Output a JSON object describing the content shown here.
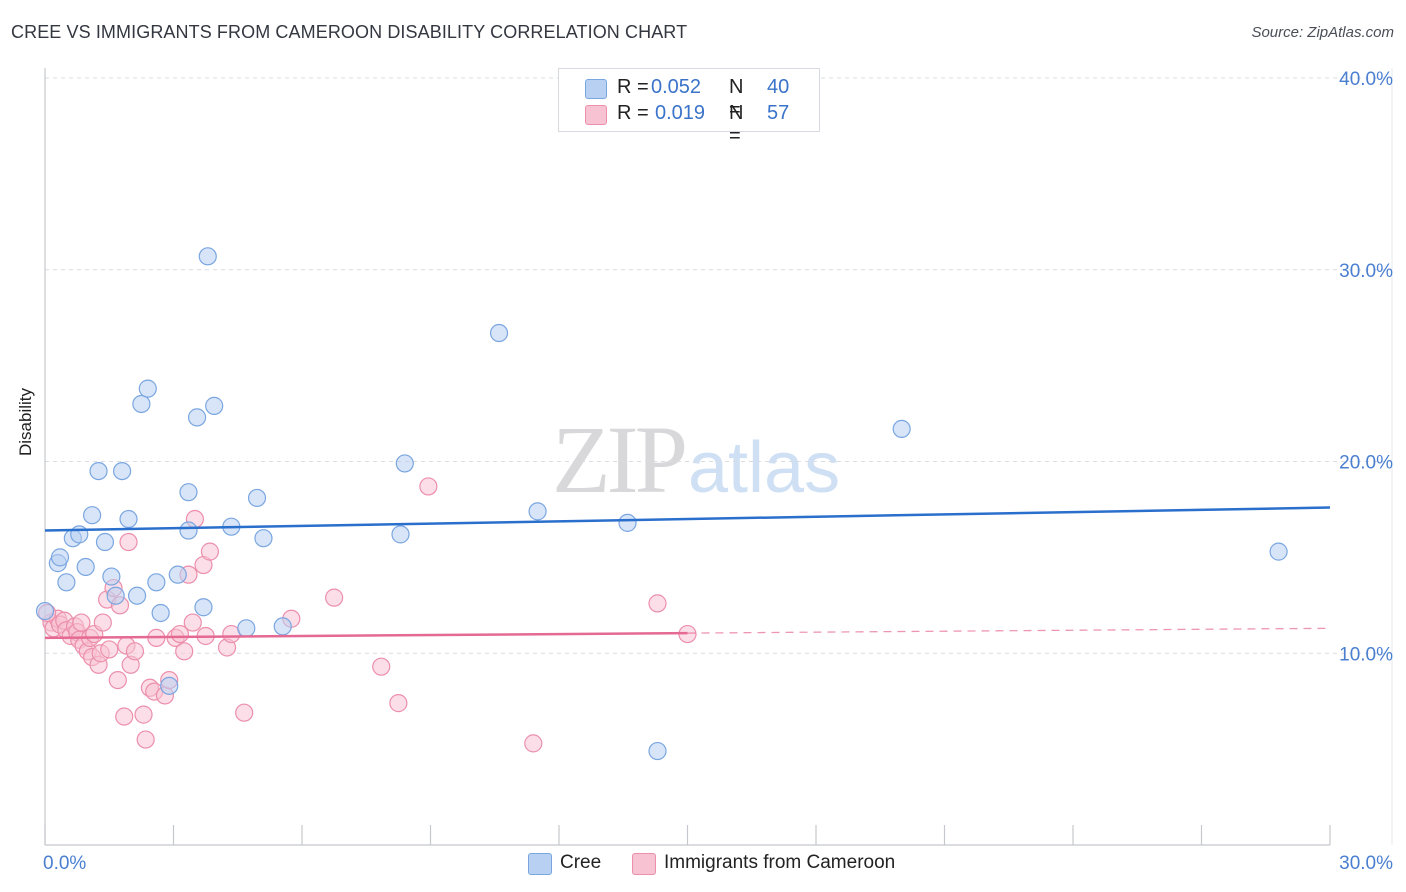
{
  "title": "CREE VS IMMIGRANTS FROM CAMEROON DISABILITY CORRELATION CHART",
  "source": "Source: ZipAtlas.com",
  "watermark": {
    "zip": "ZIP",
    "atlas": "atlas"
  },
  "colors": {
    "cree_fill": "#b8d0f2",
    "cree_stroke": "#7aa6e0",
    "cree_line": "#2a6fcc",
    "cam_fill": "#f7c3d3",
    "cam_stroke": "#ec8fac",
    "cam_line": "#e56a93",
    "tick_label": "#4a7fd0",
    "grid": "#d9dce1"
  },
  "legend_top": {
    "rows": [
      {
        "series": "cree",
        "r_label": "R =",
        "r_value": "0.052",
        "n_label": "N =",
        "n_value": "40"
      },
      {
        "series": "cameroon",
        "r_label": "R =",
        "r_value": "0.019",
        "n_label": "N =",
        "n_value": "57"
      }
    ]
  },
  "legend_bottom": {
    "items": [
      "Cree",
      "Immigrants from Cameroon"
    ]
  },
  "chart_data": {
    "type": "scatter",
    "title": "CREE VS IMMIGRANTS FROM CAMEROON DISABILITY CORRELATION CHART",
    "xlabel": "",
    "ylabel": "Disability",
    "xlim": [
      0,
      30
    ],
    "ylim": [
      0,
      40
    ],
    "x_tick_labels": [
      "0.0%",
      "30.0%"
    ],
    "y_ticks": [
      10,
      20,
      30,
      40
    ],
    "y_tick_labels": [
      "10.0%",
      "20.0%",
      "30.0%",
      "40.0%"
    ],
    "grid": true,
    "series": [
      {
        "name": "Cree",
        "R": 0.052,
        "N": 40,
        "trend": {
          "x": [
            0,
            30
          ],
          "y": [
            16.4,
            17.6
          ],
          "dashed_from": null
        },
        "points": [
          [
            0.0,
            12.2
          ],
          [
            0.3,
            14.7
          ],
          [
            0.35,
            15.0
          ],
          [
            0.5,
            13.7
          ],
          [
            0.65,
            16.0
          ],
          [
            0.8,
            16.2
          ],
          [
            0.95,
            14.5
          ],
          [
            1.1,
            17.2
          ],
          [
            1.25,
            19.5
          ],
          [
            1.4,
            15.8
          ],
          [
            1.55,
            14.0
          ],
          [
            1.65,
            13.0
          ],
          [
            1.8,
            19.5
          ],
          [
            1.95,
            17.0
          ],
          [
            2.15,
            13.0
          ],
          [
            2.25,
            23.0
          ],
          [
            2.4,
            23.8
          ],
          [
            2.6,
            13.7
          ],
          [
            2.7,
            12.1
          ],
          [
            2.9,
            8.3
          ],
          [
            3.1,
            14.1
          ],
          [
            3.35,
            18.4
          ],
          [
            3.35,
            16.4
          ],
          [
            3.55,
            22.3
          ],
          [
            3.7,
            12.4
          ],
          [
            3.8,
            30.7
          ],
          [
            3.95,
            22.9
          ],
          [
            4.35,
            16.6
          ],
          [
            4.7,
            11.3
          ],
          [
            4.95,
            18.1
          ],
          [
            5.1,
            16.0
          ],
          [
            5.55,
            11.4
          ],
          [
            8.3,
            16.2
          ],
          [
            8.4,
            19.9
          ],
          [
            10.6,
            26.7
          ],
          [
            11.5,
            17.4
          ],
          [
            13.6,
            16.8
          ],
          [
            14.3,
            4.9
          ],
          [
            20.0,
            21.7
          ],
          [
            28.8,
            15.3
          ]
        ]
      },
      {
        "name": "Immigrants from Cameroon",
        "R": 0.019,
        "N": 57,
        "trend": {
          "x": [
            0,
            30
          ],
          "y": [
            10.8,
            11.3
          ],
          "dashed_from": 15
        },
        "points": [
          [
            0.15,
            11.6
          ],
          [
            0.2,
            11.3
          ],
          [
            0.3,
            11.8
          ],
          [
            0.35,
            11.5
          ],
          [
            0.45,
            11.7
          ],
          [
            0.5,
            11.2
          ],
          [
            0.6,
            10.9
          ],
          [
            0.7,
            11.4
          ],
          [
            0.75,
            11.1
          ],
          [
            0.8,
            10.7
          ],
          [
            0.85,
            11.6
          ],
          [
            0.9,
            10.4
          ],
          [
            1.0,
            10.1
          ],
          [
            1.05,
            10.8
          ],
          [
            1.1,
            9.8
          ],
          [
            1.15,
            11.0
          ],
          [
            1.25,
            9.4
          ],
          [
            1.3,
            10.0
          ],
          [
            1.35,
            11.6
          ],
          [
            1.45,
            12.8
          ],
          [
            1.5,
            10.2
          ],
          [
            1.6,
            13.4
          ],
          [
            1.7,
            8.6
          ],
          [
            1.75,
            12.5
          ],
          [
            1.85,
            6.7
          ],
          [
            1.9,
            10.4
          ],
          [
            1.95,
            15.8
          ],
          [
            2.0,
            9.4
          ],
          [
            2.1,
            10.1
          ],
          [
            2.3,
            6.8
          ],
          [
            2.35,
            5.5
          ],
          [
            2.45,
            8.2
          ],
          [
            2.55,
            8.0
          ],
          [
            2.6,
            10.8
          ],
          [
            2.8,
            7.8
          ],
          [
            2.9,
            8.6
          ],
          [
            3.05,
            10.8
          ],
          [
            3.15,
            11.0
          ],
          [
            3.25,
            10.1
          ],
          [
            3.35,
            14.1
          ],
          [
            3.45,
            11.6
          ],
          [
            3.5,
            17.0
          ],
          [
            3.7,
            14.6
          ],
          [
            3.75,
            10.9
          ],
          [
            3.85,
            15.3
          ],
          [
            4.25,
            10.3
          ],
          [
            4.35,
            11.0
          ],
          [
            4.65,
            6.9
          ],
          [
            5.75,
            11.8
          ],
          [
            6.75,
            12.9
          ],
          [
            7.85,
            9.3
          ],
          [
            8.25,
            7.4
          ],
          [
            8.95,
            18.7
          ],
          [
            11.4,
            5.3
          ],
          [
            14.3,
            12.6
          ],
          [
            15.0,
            11.0
          ],
          [
            0.05,
            12.1
          ]
        ]
      }
    ]
  }
}
